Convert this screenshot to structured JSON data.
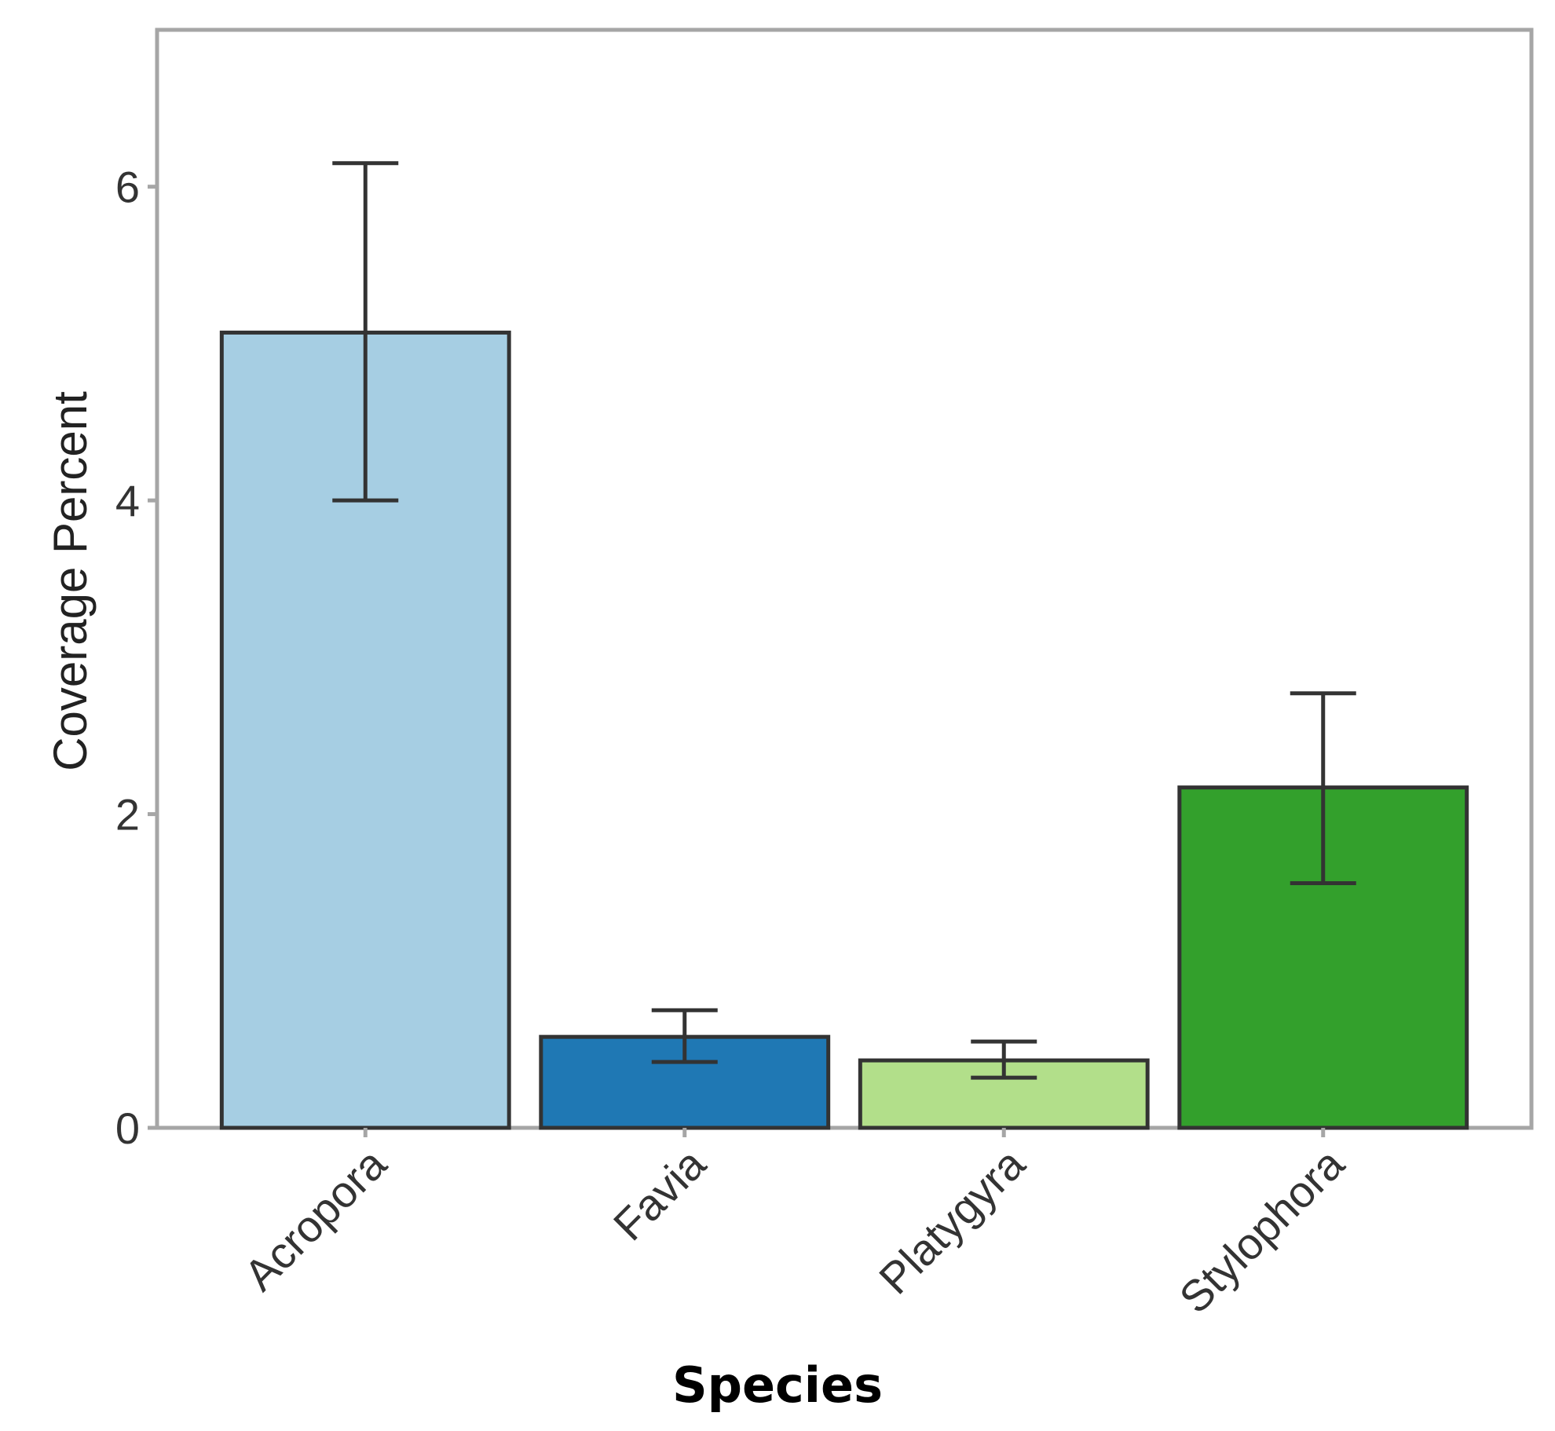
{
  "chart_data": {
    "type": "bar",
    "title": "",
    "xlabel": "Species",
    "ylabel": "Coverage Percent",
    "categories": [
      "Acropora",
      "Favia",
      "Platygyra",
      "Stylophora"
    ],
    "values": [
      5.07,
      0.58,
      0.43,
      2.17
    ],
    "error_lower": [
      4.0,
      0.42,
      0.32,
      1.56
    ],
    "error_upper": [
      6.15,
      0.75,
      0.55,
      2.77
    ],
    "colors": [
      "#a6cee3",
      "#1f78b4",
      "#b2df8a",
      "#33a02c"
    ],
    "ylim": [
      0,
      7
    ],
    "yticks": [
      0,
      2,
      4,
      6
    ],
    "grid": false,
    "legend": "none"
  }
}
